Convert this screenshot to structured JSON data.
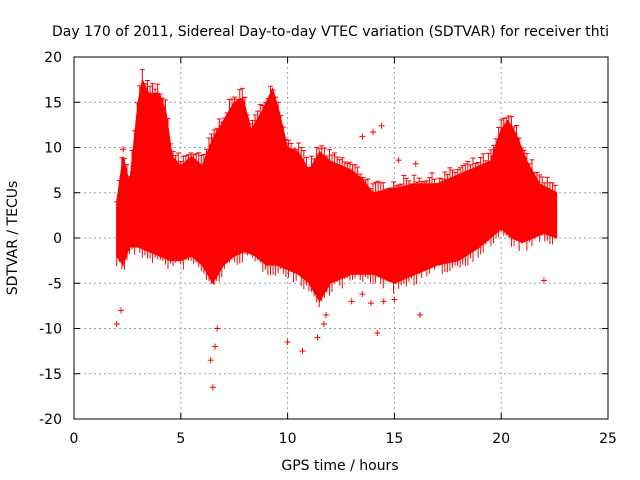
{
  "chart_data": {
    "type": "scatter",
    "title": "Day 170 of 2011, Sidereal Day-to-day VTEC variation (SDTVAR) for receiver thti",
    "xlabel": "GPS time / hours",
    "ylabel": "SDTVAR / TECUs",
    "xlim": [
      0,
      25
    ],
    "ylim": [
      -20,
      20
    ],
    "x_ticks": [
      "0",
      "5",
      "10",
      "15",
      "20",
      "25"
    ],
    "y_ticks": [
      "20",
      "15",
      "10",
      "5",
      "0",
      "-5",
      "-10",
      "-15",
      "-20"
    ],
    "grid": true,
    "marker": "plus",
    "error_bars": true,
    "series": [
      {
        "name": "SDTVAR",
        "color": "#ff0000",
        "upper_envelope": [
          [
            2.0,
            4
          ],
          [
            2.3,
            9
          ],
          [
            2.6,
            6
          ],
          [
            3.0,
            15
          ],
          [
            3.2,
            17.5
          ],
          [
            3.5,
            16
          ],
          [
            4.0,
            16
          ],
          [
            4.3,
            14
          ],
          [
            4.6,
            9
          ],
          [
            5.0,
            8
          ],
          [
            5.5,
            9
          ],
          [
            6.0,
            8
          ],
          [
            6.5,
            11
          ],
          [
            7.0,
            13
          ],
          [
            7.5,
            15
          ],
          [
            7.9,
            15.5
          ],
          [
            8.3,
            12
          ],
          [
            8.8,
            14
          ],
          [
            9.3,
            16.5
          ],
          [
            9.6,
            14
          ],
          [
            10.0,
            10
          ],
          [
            10.5,
            9.5
          ],
          [
            11.0,
            7.5
          ],
          [
            11.5,
            9.5
          ],
          [
            12.0,
            8.5
          ],
          [
            13.0,
            7.5
          ],
          [
            13.5,
            6.5
          ],
          [
            14.0,
            5
          ],
          [
            15.0,
            5.5
          ],
          [
            16.0,
            6
          ],
          [
            17.0,
            6
          ],
          [
            18.0,
            7
          ],
          [
            19.0,
            8
          ],
          [
            19.5,
            8.5
          ],
          [
            20.0,
            12
          ],
          [
            20.3,
            13
          ],
          [
            20.7,
            11.5
          ],
          [
            21.2,
            8.5
          ],
          [
            21.8,
            6
          ],
          [
            22.2,
            5.5
          ],
          [
            22.6,
            5
          ]
        ],
        "lower_envelope": [
          [
            2.0,
            -2
          ],
          [
            2.3,
            -3
          ],
          [
            2.6,
            -1
          ],
          [
            3.0,
            -1
          ],
          [
            3.5,
            -1.5
          ],
          [
            4.0,
            -2
          ],
          [
            4.5,
            -2.5
          ],
          [
            5.0,
            -2.5
          ],
          [
            5.5,
            -2
          ],
          [
            6.0,
            -3
          ],
          [
            6.5,
            -5
          ],
          [
            7.0,
            -3
          ],
          [
            7.5,
            -2
          ],
          [
            8.0,
            -1.5
          ],
          [
            8.5,
            -2
          ],
          [
            9.0,
            -3
          ],
          [
            9.5,
            -3
          ],
          [
            10.0,
            -3.5
          ],
          [
            10.5,
            -4
          ],
          [
            11.0,
            -5
          ],
          [
            11.5,
            -7
          ],
          [
            12.0,
            -5
          ],
          [
            13.0,
            -4
          ],
          [
            14.0,
            -4
          ],
          [
            15.0,
            -5
          ],
          [
            16.0,
            -4
          ],
          [
            17.0,
            -3
          ],
          [
            18.0,
            -2.5
          ],
          [
            19.0,
            -1
          ],
          [
            19.5,
            0
          ],
          [
            20.0,
            1
          ],
          [
            20.5,
            0
          ],
          [
            21.0,
            -0.5
          ],
          [
            21.5,
            0
          ],
          [
            22.0,
            0.5
          ],
          [
            22.6,
            0
          ]
        ],
        "outliers": [
          [
            2.0,
            -9.5
          ],
          [
            2.2,
            -8
          ],
          [
            6.5,
            -16.5
          ],
          [
            6.4,
            -13.5
          ],
          [
            6.7,
            -10
          ],
          [
            6.6,
            -12
          ],
          [
            10.0,
            -11.5
          ],
          [
            10.7,
            -12.5
          ],
          [
            11.4,
            -11
          ],
          [
            11.7,
            -9.5
          ],
          [
            11.8,
            -8.5
          ],
          [
            13.0,
            -7
          ],
          [
            13.5,
            -6.2
          ],
          [
            13.9,
            -7.2
          ],
          [
            14.2,
            -10.5
          ],
          [
            14.5,
            -7
          ],
          [
            15.0,
            -6.8
          ],
          [
            16.2,
            -8.5
          ],
          [
            13.5,
            11.2
          ],
          [
            14.0,
            11.7
          ],
          [
            14.4,
            12.4
          ],
          [
            15.2,
            8.6
          ],
          [
            16.0,
            8.2
          ],
          [
            22.0,
            -4.7
          ],
          [
            2.3,
            9.8
          ]
        ]
      }
    ]
  }
}
